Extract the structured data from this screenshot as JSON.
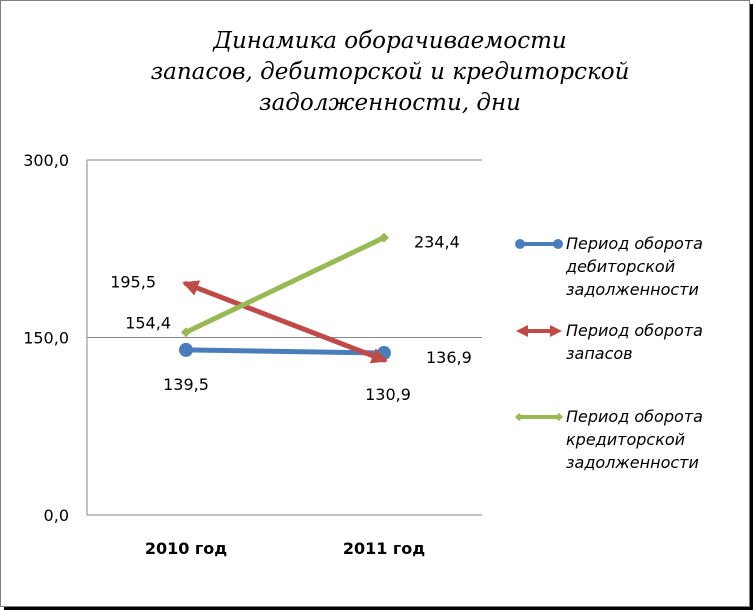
{
  "chart_data": {
    "type": "line",
    "title_lines": [
      "Динамика оборачиваемости",
      "запасов, дебиторской и кредиторской",
      "задолженности, дни"
    ],
    "categories": [
      "2010 год",
      "2011 год"
    ],
    "ylim": [
      0,
      300
    ],
    "yticks": [
      0,
      150,
      300
    ],
    "ytick_labels": [
      "0,0",
      "150,0",
      "300,0"
    ],
    "grid": true,
    "legend_position": "right",
    "series": [
      {
        "name_lines": [
          "Период оборота",
          "дебиторской",
          "задолженности"
        ],
        "values": [
          139.5,
          136.9
        ],
        "value_labels": [
          "139,5",
          "136,9"
        ],
        "color": "#4a7ebb",
        "marker": "circle"
      },
      {
        "name_lines": [
          "Период оборота",
          "запасов"
        ],
        "values": [
          195.5,
          130.9
        ],
        "value_labels": [
          "195,5",
          "130,9"
        ],
        "color": "#be4b48",
        "marker": "arrow"
      },
      {
        "name_lines": [
          "Период оборота",
          "кредиторской",
          "задолженности"
        ],
        "values": [
          154.4,
          234.4
        ],
        "value_labels": [
          "154,4",
          "234,4"
        ],
        "color": "#98b954",
        "marker": "diamond"
      }
    ]
  }
}
